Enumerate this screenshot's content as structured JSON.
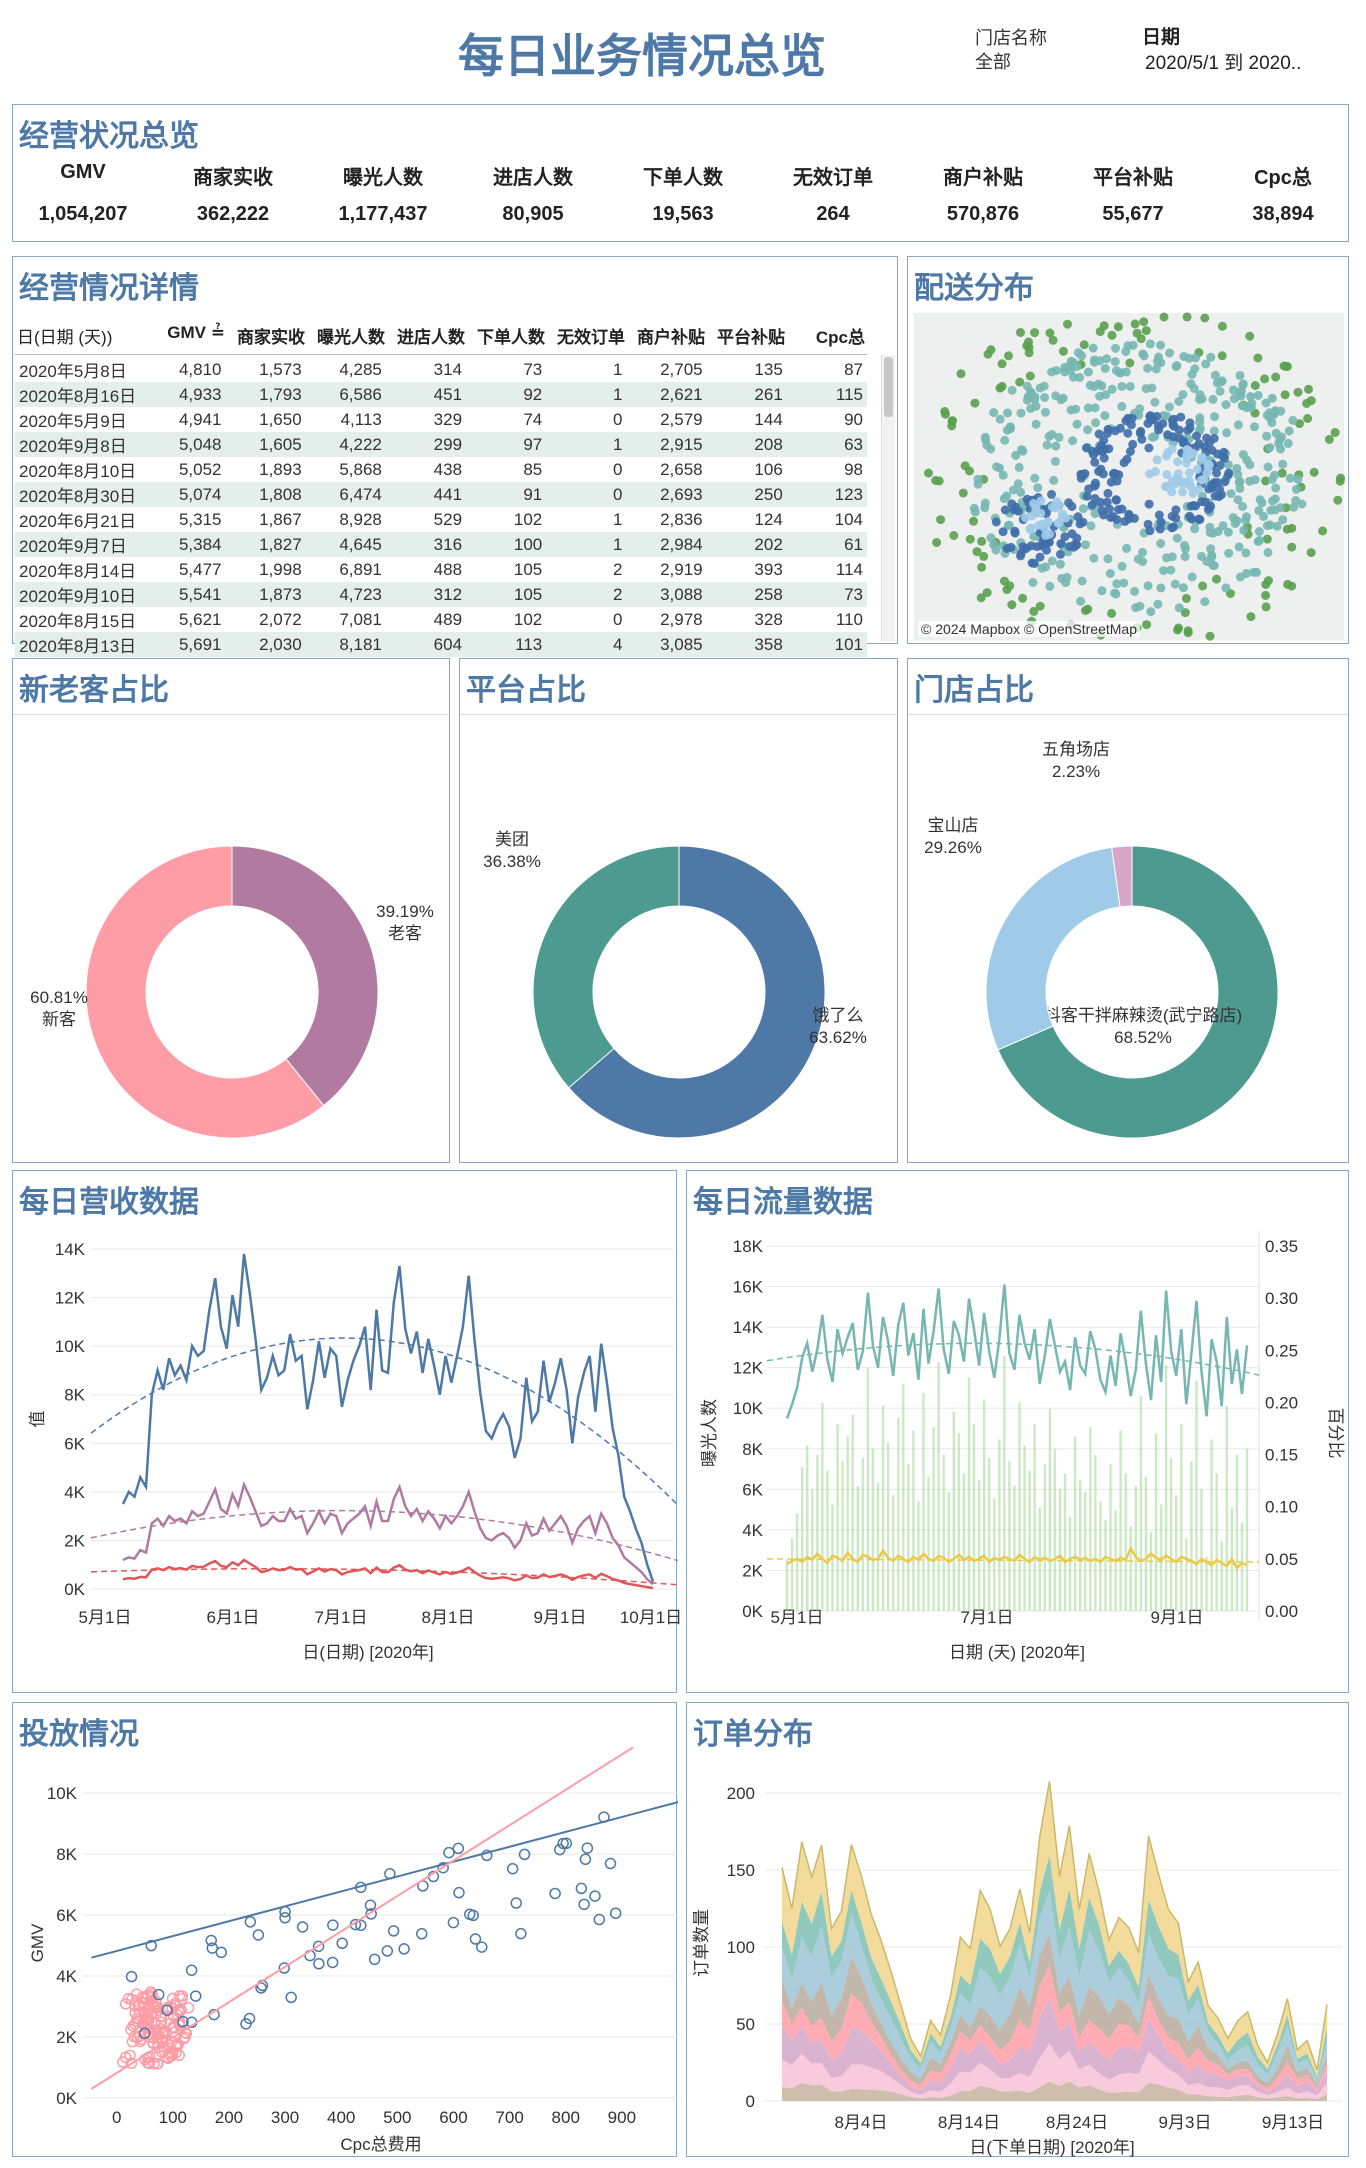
{
  "header": {
    "title": "每日业务情况总览",
    "store_label": "门店名称",
    "store_value": "全部",
    "date_label": "日期",
    "date_value": "2020/5/1 到 2020.."
  },
  "kpi": {
    "title": "经营状况总览",
    "items": [
      {
        "label": "GMV",
        "value": "1,054,207"
      },
      {
        "label": "商家实收",
        "value": "362,222"
      },
      {
        "label": "曝光人数",
        "value": "1,177,437"
      },
      {
        "label": "进店人数",
        "value": "80,905"
      },
      {
        "label": "下单人数",
        "value": "19,563"
      },
      {
        "label": "无效订单",
        "value": "264"
      },
      {
        "label": "商户补贴",
        "value": "570,876"
      },
      {
        "label": "平台补贴",
        "value": "55,677"
      },
      {
        "label": "Cpc总",
        "value": "38,894"
      }
    ]
  },
  "detail": {
    "title": "经营情况详情",
    "headers": [
      "日(日期 (天))",
      "GMV ≟",
      "商家实收",
      "曝光人数",
      "进店人数",
      "下单人数",
      "无效订单",
      "商户补贴",
      "平台补贴",
      "Cpc总"
    ],
    "rows": [
      [
        "2020年5月8日",
        "4,810",
        "1,573",
        "4,285",
        "314",
        "73",
        "1",
        "2,705",
        "135",
        "87"
      ],
      [
        "2020年8月16日",
        "4,933",
        "1,793",
        "6,586",
        "451",
        "92",
        "1",
        "2,621",
        "261",
        "115"
      ],
      [
        "2020年5月9日",
        "4,941",
        "1,650",
        "4,113",
        "329",
        "74",
        "0",
        "2,579",
        "144",
        "90"
      ],
      [
        "2020年9月8日",
        "5,048",
        "1,605",
        "4,222",
        "299",
        "97",
        "1",
        "2,915",
        "208",
        "63"
      ],
      [
        "2020年8月10日",
        "5,052",
        "1,893",
        "5,868",
        "438",
        "85",
        "0",
        "2,658",
        "106",
        "98"
      ],
      [
        "2020年8月30日",
        "5,074",
        "1,808",
        "6,474",
        "441",
        "91",
        "0",
        "2,693",
        "250",
        "123"
      ],
      [
        "2020年6月21日",
        "5,315",
        "1,867",
        "8,928",
        "529",
        "102",
        "1",
        "2,836",
        "124",
        "104"
      ],
      [
        "2020年9月7日",
        "5,384",
        "1,827",
        "4,645",
        "316",
        "100",
        "1",
        "2,984",
        "202",
        "61"
      ],
      [
        "2020年8月14日",
        "5,477",
        "1,998",
        "6,891",
        "488",
        "105",
        "2",
        "2,919",
        "393",
        "114"
      ],
      [
        "2020年9月10日",
        "5,541",
        "1,873",
        "4,723",
        "312",
        "105",
        "2",
        "3,088",
        "258",
        "73"
      ],
      [
        "2020年8月15日",
        "5,621",
        "2,072",
        "7,081",
        "489",
        "102",
        "0",
        "2,978",
        "328",
        "110"
      ],
      [
        "2020年8月13日",
        "5,691",
        "2,030",
        "8,181",
        "604",
        "113",
        "4",
        "3,085",
        "358",
        "101"
      ]
    ]
  },
  "map": {
    "title": "配送分布",
    "attribution": "© 2024 Mapbox © OpenStreetMap"
  },
  "colors": {
    "blue": "#4e79a7",
    "teal": "#4c9a90",
    "pink": "#ff9da7",
    "purple": "#b07aa1",
    "lightblue": "#a0cbe8",
    "lightpink": "#d7a6c9",
    "red": "#e15759",
    "yellow": "#edc948",
    "green": "#8cd17d",
    "lightteal": "#76b7b2",
    "navy": "#3f6ea8",
    "grassgreen": "#59a14f"
  },
  "chart_data": [
    {
      "id": "new_old",
      "type": "pie",
      "title": "新老客占比",
      "slices": [
        {
          "label": "老客",
          "value": 39.19,
          "display": "39.19%"
        },
        {
          "label": "新客",
          "value": 60.81,
          "display": "60.81%"
        }
      ]
    },
    {
      "id": "platform",
      "type": "pie",
      "title": "平台占比",
      "slices": [
        {
          "label": "饿了么",
          "value": 63.62,
          "display": "63.62%"
        },
        {
          "label": "美团",
          "value": 36.38,
          "display": "36.38%"
        }
      ]
    },
    {
      "id": "store",
      "type": "pie",
      "title": "门店占比",
      "slices": [
        {
          "label": "抖客干拌麻辣烫(武宁路店)",
          "value": 68.52,
          "display": "68.52%"
        },
        {
          "label": "宝山店",
          "value": 29.26,
          "display": "29.26%"
        },
        {
          "label": "五角场店",
          "value": 2.23,
          "display": "2.23%"
        }
      ]
    },
    {
      "id": "revenue",
      "type": "line",
      "title": "每日营收数据",
      "xlabel": "日(日期) [2020年]",
      "ylabel": "值",
      "x_ticks": [
        "5月1日",
        "6月1日",
        "7月1日",
        "8月1日",
        "9月1日",
        "10月1日"
      ],
      "y_ticks": [
        "0K",
        "2K",
        "4K",
        "6K",
        "8K",
        "10K",
        "12K",
        "14K"
      ],
      "ylim": [
        0,
        14000
      ],
      "series": [
        {
          "values": [
            3500,
            4000,
            3800,
            4600,
            4200,
            8000,
            9000,
            8200,
            9500,
            8800,
            9200,
            8600,
            10000,
            9600,
            9800,
            11500,
            12800,
            10800,
            9900,
            12100,
            10800,
            13800,
            12200,
            10300,
            8200,
            8700,
            9600,
            8800,
            9000,
            10500,
            9400,
            9600,
            7400,
            8600,
            10200,
            8700,
            9900,
            9600,
            7500,
            8600,
            9400,
            10000,
            10800,
            8200,
            11500,
            9000,
            8900,
            11800,
            13300,
            10700,
            9700,
            10600,
            8900,
            10300,
            9200,
            8000,
            9600,
            8500,
            9600,
            10800,
            12900,
            10300,
            8100,
            6500,
            6200,
            6800,
            7200,
            6700,
            5400,
            6200,
            8700,
            6900,
            7300,
            9400,
            7700,
            8500,
            9500,
            8200,
            6000,
            7900,
            8900,
            9600,
            7300,
            10100,
            8500,
            6600,
            5500,
            3800,
            3200,
            2500,
            1900,
            1000,
            300
          ]
        },
        {
          "values": [
            1200,
            1300,
            1250,
            1600,
            1500,
            2700,
            2900,
            2600,
            3000,
            2800,
            2900,
            2700,
            3200,
            3000,
            3100,
            3600,
            4100,
            3300,
            3100,
            3900,
            3400,
            4300,
            3800,
            3200,
            2600,
            2700,
            3000,
            2800,
            2800,
            3300,
            2900,
            3000,
            2300,
            2700,
            3200,
            2700,
            3100,
            3000,
            2300,
            2700,
            2900,
            3100,
            3400,
            2600,
            3600,
            2800,
            2800,
            3700,
            4200,
            3400,
            3000,
            3300,
            2800,
            3200,
            2900,
            2500,
            3000,
            2700,
            3000,
            3400,
            4000,
            3200,
            2500,
            2100,
            2000,
            2200,
            2300,
            2100,
            1700,
            2000,
            2700,
            2200,
            2300,
            2900,
            2400,
            2700,
            3000,
            2600,
            1900,
            2500,
            2800,
            3000,
            2300,
            3100,
            2700,
            2100,
            1800,
            1300,
            1100,
            900,
            700,
            400,
            200
          ]
        },
        {
          "values": [
            400,
            450,
            420,
            500,
            480,
            800,
            850,
            780,
            900,
            820,
            860,
            800,
            950,
            900,
            920,
            1050,
            1150,
            950,
            900,
            1100,
            980,
            1200,
            1050,
            900,
            700,
            750,
            850,
            780,
            790,
            900,
            800,
            820,
            600,
            720,
            850,
            720,
            820,
            780,
            600,
            700,
            740,
            780,
            850,
            650,
            880,
            700,
            690,
            880,
            980,
            800,
            730,
            780,
            650,
            760,
            680,
            600,
            700,
            620,
            680,
            760,
            880,
            700,
            550,
            450,
            420,
            450,
            480,
            440,
            360,
            410,
            560,
            450,
            470,
            600,
            490,
            540,
            600,
            520,
            380,
            500,
            560,
            600,
            460,
            620,
            530,
            410,
            350,
            250,
            200,
            160,
            120,
            80,
            40
          ]
        }
      ]
    },
    {
      "id": "traffic",
      "type": "line",
      "title": "每日流量数据",
      "xlabel": "日期 (天) [2020年]",
      "ylabel": "曝光人数",
      "y2label": "百分比",
      "x_ticks": [
        "5月1日",
        "7月1日",
        "9月1日"
      ],
      "y_ticks": [
        "0K",
        "2K",
        "4K",
        "6K",
        "8K",
        "10K",
        "12K",
        "14K",
        "16K",
        "18K"
      ],
      "y2_ticks": [
        "0.00",
        "0.05",
        "0.10",
        "0.15",
        "0.20",
        "0.25",
        "0.30",
        "0.35"
      ],
      "ylim": [
        0,
        18000
      ],
      "y2lim": [
        0,
        0.35
      ],
      "series": [
        {
          "values": [
            9500,
            10200,
            11000,
            12500,
            13200,
            11800,
            12900,
            14600,
            12400,
            11300,
            13900,
            12700,
            13500,
            14200,
            11900,
            12800,
            15700,
            13100,
            12000,
            14500,
            13300,
            11600,
            14100,
            15200,
            12600,
            13700,
            11400,
            14900,
            12200,
            13800,
            15900,
            12900,
            11700,
            14300,
            13600,
            12300,
            15400,
            13900,
            12100,
            14700,
            12800,
            11500,
            13400,
            16100,
            12700,
            11900,
            14600,
            13200,
            12400,
            13900,
            11200,
            12600,
            14400,
            13100,
            11800,
            12300,
            10900,
            13500,
            12100,
            11700,
            13800,
            12900,
            11400,
            10800,
            12600,
            11100,
            13700,
            12300,
            10600,
            11900,
            14800,
            12200,
            10400,
            13600,
            11300,
            15800,
            12800,
            11600,
            13900,
            10200,
            12700,
            15300,
            11800,
            9600,
            13400,
            12300,
            10100,
            14500,
            11200,
            12900,
            10700,
            13100
          ]
        },
        {
          "values": [
            0.045,
            0.048,
            0.05,
            0.047,
            0.052,
            0.049,
            0.055,
            0.05,
            0.046,
            0.053,
            0.051,
            0.048,
            0.056,
            0.05,
            0.047,
            0.054,
            0.052,
            0.049,
            0.05,
            0.058,
            0.051,
            0.048,
            0.053,
            0.05,
            0.047,
            0.052,
            0.049,
            0.055,
            0.05,
            0.048,
            0.053,
            0.051,
            0.047,
            0.05,
            0.054,
            0.049,
            0.052,
            0.048,
            0.05,
            0.053,
            0.047,
            0.051,
            0.049,
            0.052,
            0.05,
            0.048,
            0.054,
            0.05,
            0.047,
            0.052,
            0.049,
            0.051,
            0.048,
            0.05,
            0.053,
            0.047,
            0.05,
            0.052,
            0.049,
            0.051,
            0.048,
            0.05,
            0.047,
            0.052,
            0.05,
            0.048,
            0.051,
            0.049,
            0.06,
            0.052,
            0.048,
            0.05,
            0.055,
            0.051,
            0.049,
            0.053,
            0.05,
            0.047,
            0.052,
            0.05,
            0.048,
            0.045,
            0.05,
            0.047,
            0.044,
            0.049,
            0.046,
            0.043,
            0.05,
            0.041,
            0.046,
            0.044
          ]
        }
      ]
    },
    {
      "id": "ads",
      "type": "scatter",
      "title": "投放情况",
      "xlabel": "Cpc总费用",
      "ylabel": "GMV",
      "x_ticks": [
        "0",
        "100",
        "200",
        "300",
        "400",
        "500",
        "600",
        "700",
        "800",
        "900"
      ],
      "y_ticks": [
        "0K",
        "2K",
        "4K",
        "6K",
        "8K",
        "10K"
      ],
      "xlim": [
        -60,
        1000
      ],
      "ylim": [
        0,
        11500
      ]
    },
    {
      "id": "orders",
      "type": "area",
      "title": "订单分布",
      "xlabel": "日(下单日期) [2020年]",
      "ylabel": "订单数量",
      "x_ticks": [
        "8月4日",
        "8月14日",
        "8月24日",
        "9月3日",
        "9月13日"
      ],
      "y_ticks": [
        "0",
        "50",
        "100",
        "150",
        "200"
      ],
      "ylim": [
        0,
        210
      ],
      "total": [
        150,
        120,
        160,
        140,
        165,
        115,
        130,
        175,
        150,
        120,
        100,
        80,
        60,
        40,
        30,
        55,
        45,
        70,
        105,
        95,
        130,
        120,
        100,
        115,
        145,
        115,
        175,
        205,
        140,
        170,
        120,
        160,
        140,
        110,
        125,
        115,
        95,
        165,
        140,
        120,
        115,
        80,
        95,
        65,
        55,
        40,
        50,
        55,
        35,
        25,
        45,
        70,
        35,
        40,
        20,
        60
      ]
    }
  ]
}
